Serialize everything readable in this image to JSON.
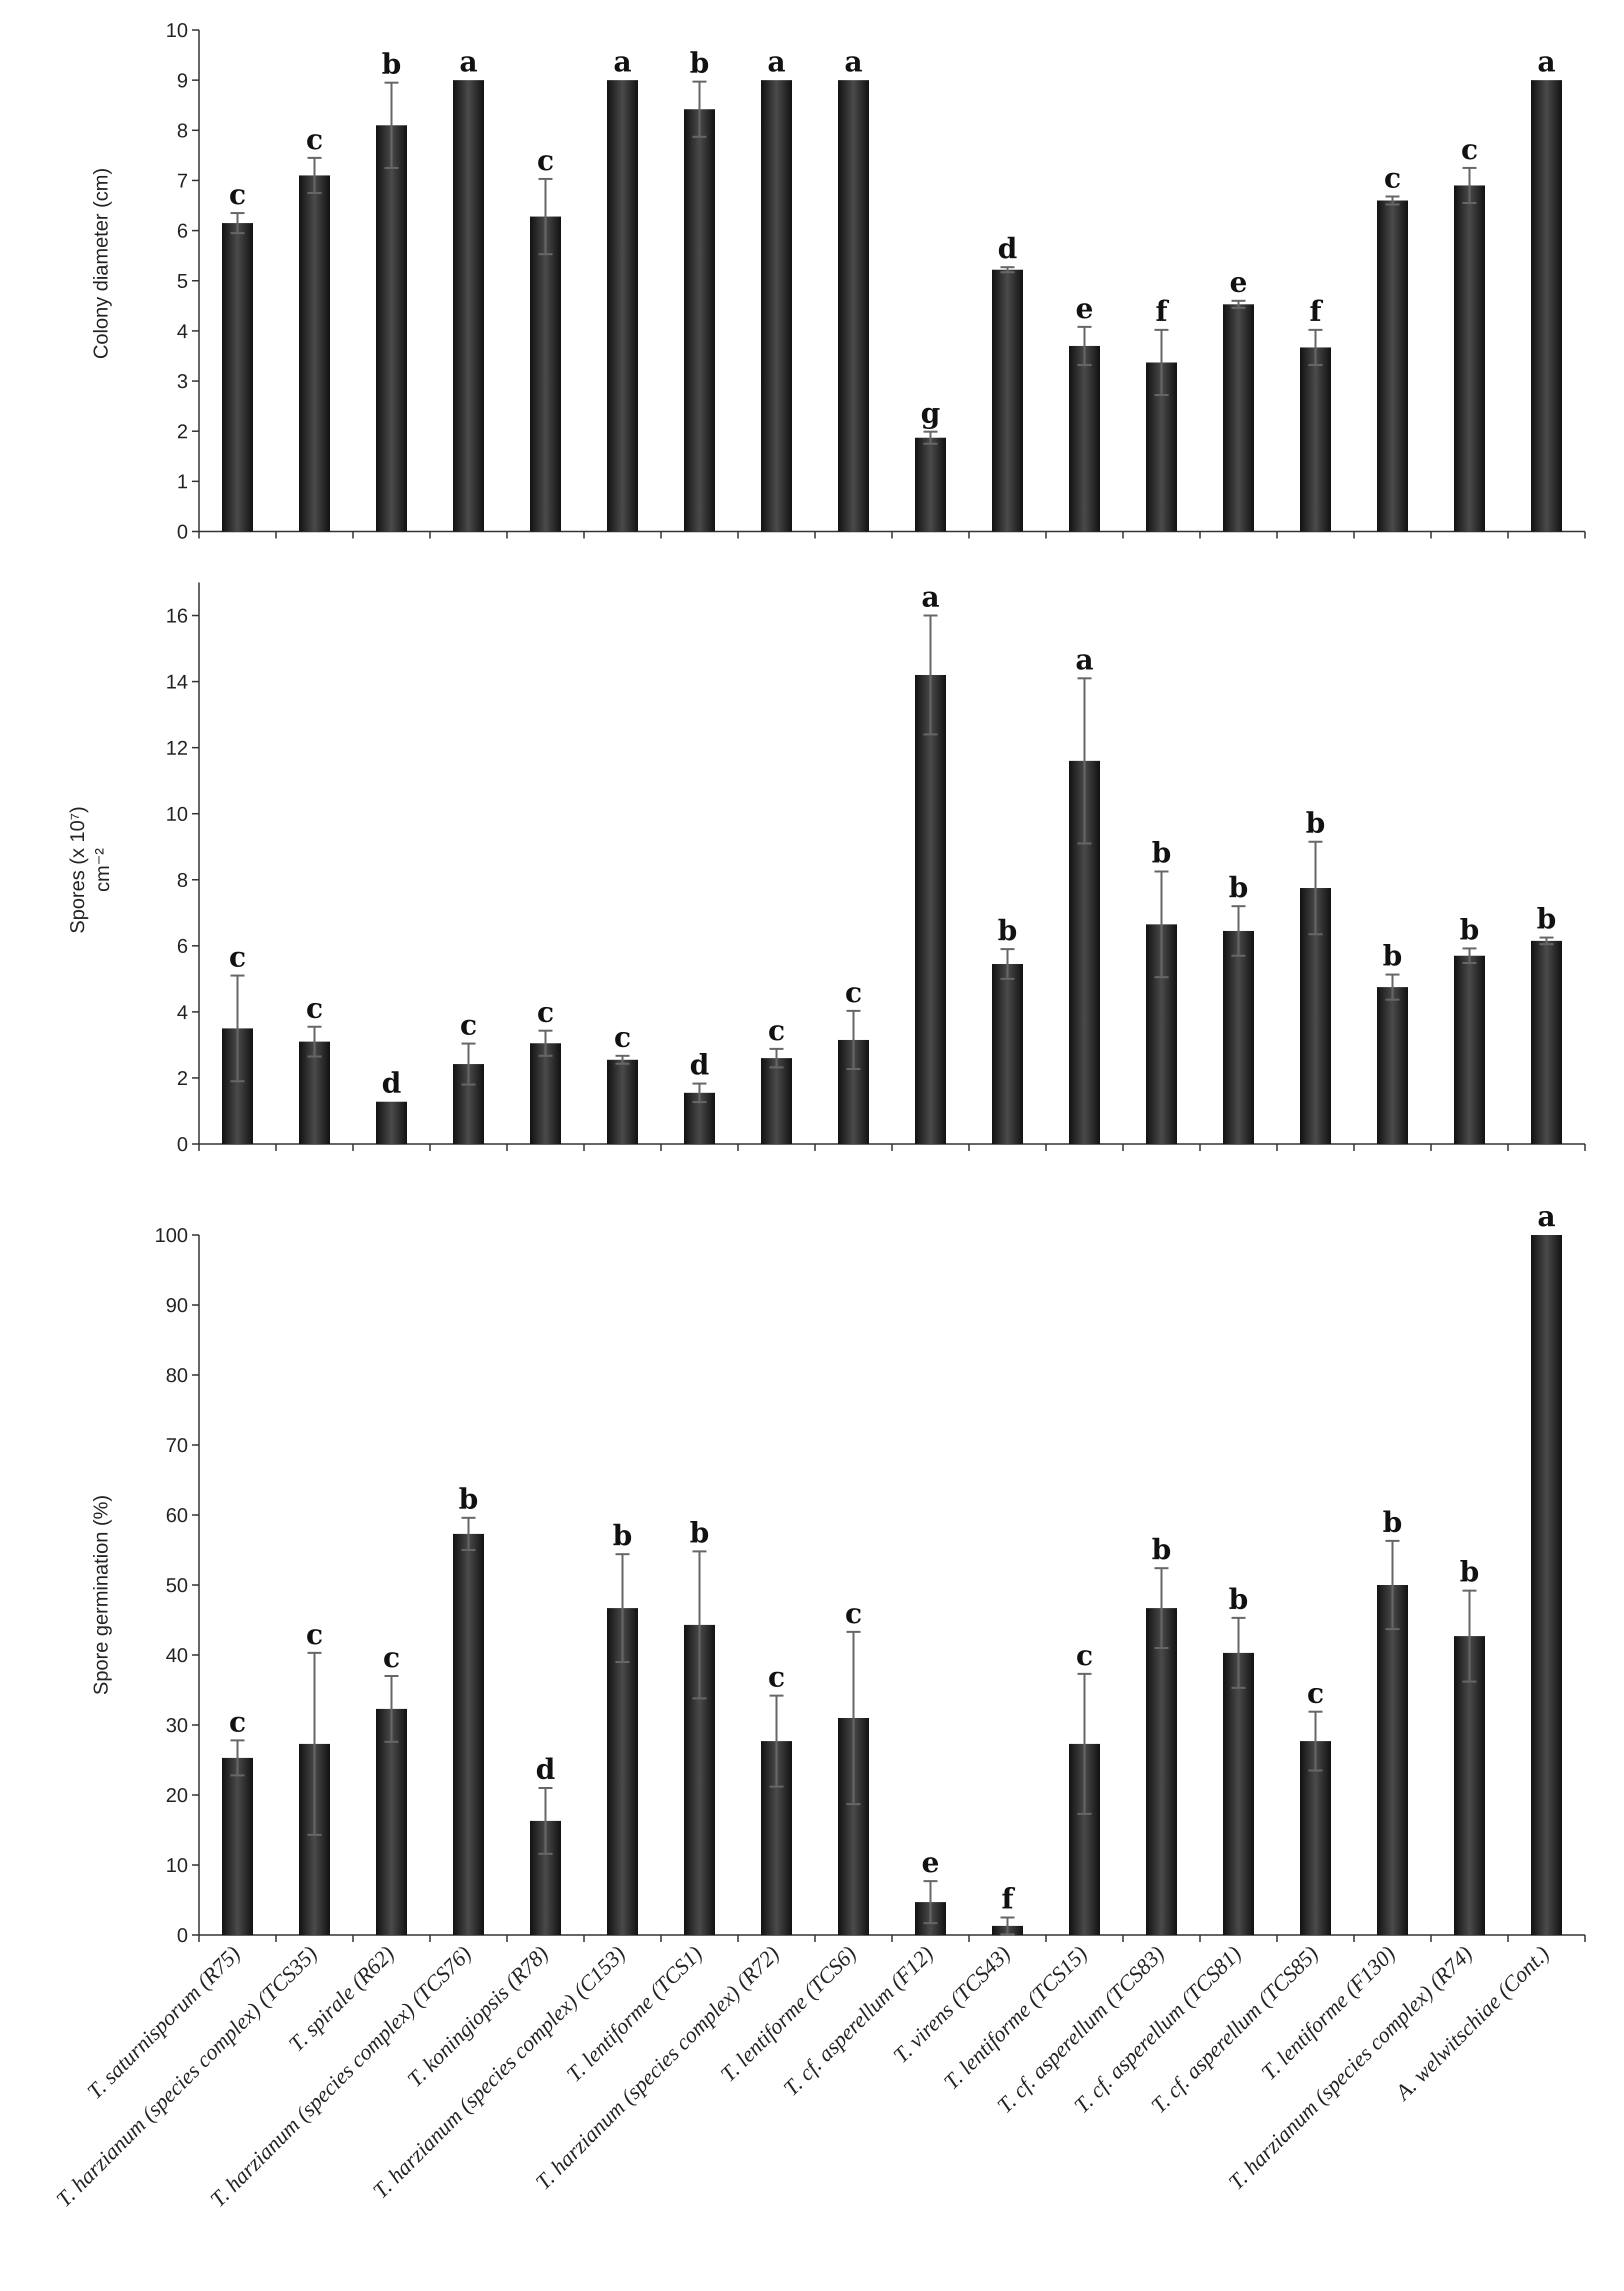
{
  "colors": {
    "bar": "#111111",
    "bar_highlight": "#4a4a4a",
    "error_bar": "#666666",
    "axis": "#333333"
  },
  "chart_data": [
    {
      "type": "bar",
      "title": "",
      "xlabel": "",
      "ylabel": "Colony diameter (cm)",
      "ylim": [
        0,
        10
      ],
      "yticks": [
        0,
        1,
        2,
        3,
        4,
        5,
        6,
        7,
        8,
        9,
        10
      ],
      "grid": false,
      "categories": [
        "T. saturnisporum (R75)",
        "T. harzianum (species complex) (TCS35)",
        "T. spirale (R62)",
        "T. harzianum (species complex) (TCS76)",
        "T. koningiopsis (R78)",
        "T. harzianum (species complex) (C153)",
        "T. lentiforme (TCS1)",
        "T. harzianum (species complex) (R72)",
        "T. lentiforme (TCS6)",
        "T. cf. asperellum (F12)",
        "T. virens (TCS43)",
        "T. lentiforme (TCS15)",
        "T. cf. asperellum (TCS83)",
        "T. cf. asperellum (TCS81)",
        "T. cf. asperellum (TCS85)",
        "T. lentiforme (F130)",
        "T. harzianum (species complex) (R74)",
        "A. welwitschiae (Cont.)"
      ],
      "values": [
        6.15,
        7.1,
        8.1,
        9.0,
        6.28,
        9.0,
        8.42,
        9.0,
        9.0,
        1.87,
        5.22,
        3.7,
        3.37,
        4.53,
        3.67,
        6.6,
        6.9,
        9.0
      ],
      "errors": [
        0.2,
        0.35,
        0.85,
        0.0,
        0.75,
        0.0,
        0.55,
        0.0,
        0.0,
        0.12,
        0.05,
        0.38,
        0.65,
        0.07,
        0.35,
        0.08,
        0.35,
        0.0
      ],
      "letters": [
        "c",
        "c",
        "b",
        "a",
        "c",
        "a",
        "b",
        "a",
        "a",
        "g",
        "d",
        "e",
        "f",
        "e",
        "f",
        "c",
        "c",
        "a"
      ]
    },
    {
      "type": "bar",
      "title": "",
      "xlabel": "",
      "ylabel": "Spores (x 10⁷)",
      "ylabel2": "cm⁻²",
      "ylim": [
        0,
        17
      ],
      "yticks": [
        0,
        2,
        4,
        6,
        8,
        10,
        12,
        14,
        16
      ],
      "grid": false,
      "categories": [
        "T. saturnisporum (R75)",
        "T. harzianum (species complex) (TCS35)",
        "T. spirale (R62)",
        "T. harzianum (species complex) (TCS76)",
        "T. koningiopsis (R78)",
        "T. harzianum (species complex) (C153)",
        "T. lentiforme (TCS1)",
        "T. harzianum (species complex) (R72)",
        "T. lentiforme (TCS6)",
        "T. cf. asperellum (F12)",
        "T. virens (TCS43)",
        "T. lentiforme (TCS15)",
        "T. cf. asperellum (TCS83)",
        "T. cf. asperellum (TCS81)",
        "T. cf. asperellum (TCS85)",
        "T. lentiforme (F130)",
        "T. harzianum (species complex) (R74)",
        "A. welwitschiae (Cont.)"
      ],
      "values": [
        3.5,
        3.1,
        1.28,
        2.42,
        3.05,
        2.55,
        1.55,
        2.6,
        3.15,
        14.2,
        5.45,
        11.6,
        6.65,
        6.45,
        7.75,
        4.75,
        5.7,
        6.15
      ],
      "errors": [
        1.6,
        0.45,
        0.0,
        0.62,
        0.38,
        0.12,
        0.28,
        0.28,
        0.88,
        1.8,
        0.45,
        2.5,
        1.6,
        0.75,
        1.4,
        0.38,
        0.22,
        0.1
      ],
      "letters": [
        "c",
        "c",
        "d",
        "c",
        "c",
        "c",
        "d",
        "c",
        "c",
        "a",
        "b",
        "a",
        "b",
        "b",
        "b",
        "b",
        "b",
        "b"
      ]
    },
    {
      "type": "bar",
      "title": "",
      "xlabel": "",
      "ylabel": "Spore  germination (%)",
      "ylim": [
        0,
        100
      ],
      "yticks": [
        0,
        10,
        20,
        30,
        40,
        50,
        60,
        70,
        80,
        90,
        100
      ],
      "grid": false,
      "categories": [
        "T. saturnisporum (R75)",
        "T. harzianum (species complex) (TCS35)",
        "T. spirale (R62)",
        "T. harzianum (species complex) (TCS76)",
        "T. koningiopsis (R78)",
        "T. harzianum (species complex) (C153)",
        "T. lentiforme (TCS1)",
        "T. harzianum (species complex) (R72)",
        "T. lentiforme (TCS6)",
        "T. cf. asperellum (F12)",
        "T. virens (TCS43)",
        "T. lentiforme (TCS15)",
        "T. cf. asperellum (TCS83)",
        "T. cf. asperellum (TCS81)",
        "T. cf. asperellum (TCS85)",
        "T. lentiforme (F130)",
        "T. harzianum (species complex) (R74)",
        "A. welwitschiae (Cont.)"
      ],
      "values": [
        25.3,
        27.3,
        32.3,
        57.3,
        16.3,
        46.7,
        44.3,
        27.7,
        31.0,
        4.7,
        1.3,
        27.3,
        46.7,
        40.3,
        27.7,
        50.0,
        42.7,
        100.0
      ],
      "errors": [
        2.5,
        13.0,
        4.7,
        2.3,
        4.7,
        7.7,
        10.5,
        6.5,
        12.3,
        3.0,
        1.2,
        10.0,
        5.7,
        5.0,
        4.2,
        6.3,
        6.5,
        0.0
      ],
      "letters": [
        "c",
        "c",
        "c",
        "b",
        "d",
        "b",
        "b",
        "c",
        "c",
        "e",
        "f",
        "c",
        "b",
        "b",
        "c",
        "b",
        "b",
        "a"
      ]
    }
  ]
}
